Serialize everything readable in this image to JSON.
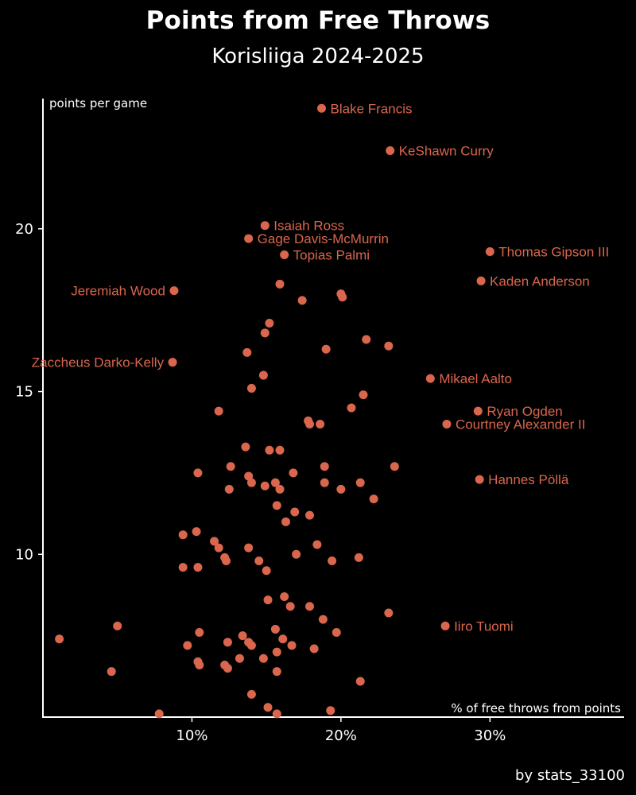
{
  "chart_data": {
    "type": "scatter",
    "title": "Points from Free Throws",
    "subtitle": "Korisliiga 2024-2025",
    "xlabel": "% of free throws from points",
    "ylabel": "points per game",
    "credit": "by stats_33100",
    "xlim": [
      0,
      39
    ],
    "ylim": [
      5,
      24
    ],
    "xticks": [
      {
        "value": 10,
        "label": "10%"
      },
      {
        "value": 20,
        "label": "20%"
      },
      {
        "value": 30,
        "label": "30%"
      }
    ],
    "yticks": [
      {
        "value": 10,
        "label": "10"
      },
      {
        "value": 15,
        "label": "15"
      },
      {
        "value": 20,
        "label": "20"
      }
    ],
    "grid": false,
    "labeled_points": [
      {
        "name": "Blake Francis",
        "x": 18.7,
        "y": 23.7,
        "side": "right"
      },
      {
        "name": "KeShawn Curry",
        "x": 23.3,
        "y": 22.4,
        "side": "right"
      },
      {
        "name": "Isaiah Ross",
        "x": 14.9,
        "y": 20.1,
        "side": "right"
      },
      {
        "name": "Gage Davis-McMurrin",
        "x": 13.8,
        "y": 19.7,
        "side": "right"
      },
      {
        "name": "Topias Palmi",
        "x": 16.2,
        "y": 19.2,
        "side": "right"
      },
      {
        "name": "Thomas Gipson III",
        "x": 30.0,
        "y": 19.3,
        "side": "right"
      },
      {
        "name": "Kaden Anderson",
        "x": 29.4,
        "y": 18.4,
        "side": "right"
      },
      {
        "name": "Jeremiah Wood",
        "x": 8.8,
        "y": 18.1,
        "side": "left"
      },
      {
        "name": "Zaccheus Darko-Kelly",
        "x": 8.7,
        "y": 15.9,
        "side": "left"
      },
      {
        "name": "Mikael Aalto",
        "x": 26.0,
        "y": 15.4,
        "side": "right"
      },
      {
        "name": "Ryan Ogden",
        "x": 29.2,
        "y": 14.4,
        "side": "right"
      },
      {
        "name": "Courtney Alexander II",
        "x": 27.1,
        "y": 14.0,
        "side": "right"
      },
      {
        "name": "Hannes Pöllä",
        "x": 29.3,
        "y": 12.3,
        "side": "right"
      },
      {
        "name": "Iiro Tuomi",
        "x": 27.0,
        "y": 7.8,
        "side": "right"
      }
    ],
    "points": [
      [
        15.9,
        18.3
      ],
      [
        20.0,
        18.0
      ],
      [
        20.1,
        17.9
      ],
      [
        17.4,
        17.8
      ],
      [
        15.2,
        17.1
      ],
      [
        14.9,
        16.8
      ],
      [
        21.7,
        16.6
      ],
      [
        23.2,
        16.4
      ],
      [
        19.0,
        16.3
      ],
      [
        13.7,
        16.2
      ],
      [
        14.8,
        15.5
      ],
      [
        14.0,
        15.1
      ],
      [
        21.5,
        14.9
      ],
      [
        20.7,
        14.5
      ],
      [
        11.8,
        14.4
      ],
      [
        17.8,
        14.1
      ],
      [
        17.9,
        14.0
      ],
      [
        18.6,
        14.0
      ],
      [
        13.6,
        13.3
      ],
      [
        15.2,
        13.2
      ],
      [
        15.9,
        13.2
      ],
      [
        12.6,
        12.7
      ],
      [
        18.9,
        12.7
      ],
      [
        23.6,
        12.7
      ],
      [
        10.4,
        12.5
      ],
      [
        13.8,
        12.4
      ],
      [
        16.8,
        12.5
      ],
      [
        14.0,
        12.2
      ],
      [
        15.6,
        12.2
      ],
      [
        18.9,
        12.2
      ],
      [
        21.3,
        12.2
      ],
      [
        12.5,
        12.0
      ],
      [
        14.9,
        12.1
      ],
      [
        15.9,
        12.0
      ],
      [
        20.0,
        12.0
      ],
      [
        22.2,
        11.7
      ],
      [
        15.7,
        11.5
      ],
      [
        16.9,
        11.3
      ],
      [
        17.9,
        11.2
      ],
      [
        16.3,
        11.0
      ],
      [
        9.4,
        10.6
      ],
      [
        10.3,
        10.7
      ],
      [
        11.5,
        10.4
      ],
      [
        11.8,
        10.2
      ],
      [
        13.8,
        10.2
      ],
      [
        18.4,
        10.3
      ],
      [
        12.2,
        9.9
      ],
      [
        12.3,
        9.8
      ],
      [
        14.5,
        9.8
      ],
      [
        17.0,
        10.0
      ],
      [
        19.4,
        9.8
      ],
      [
        21.2,
        9.9
      ],
      [
        9.4,
        9.6
      ],
      [
        10.4,
        9.6
      ],
      [
        15.0,
        9.5
      ],
      [
        16.2,
        8.7
      ],
      [
        15.1,
        8.6
      ],
      [
        16.6,
        8.4
      ],
      [
        17.9,
        8.4
      ],
      [
        23.2,
        8.2
      ],
      [
        5.0,
        7.8
      ],
      [
        18.8,
        8.0
      ],
      [
        15.6,
        7.7
      ],
      [
        19.7,
        7.6
      ],
      [
        10.5,
        7.6
      ],
      [
        1.1,
        7.4
      ],
      [
        13.4,
        7.5
      ],
      [
        13.8,
        7.3
      ],
      [
        14.0,
        7.2
      ],
      [
        16.1,
        7.4
      ],
      [
        16.7,
        7.2
      ],
      [
        9.7,
        7.2
      ],
      [
        12.4,
        7.3
      ],
      [
        18.2,
        7.1
      ],
      [
        15.7,
        7.0
      ],
      [
        13.2,
        6.8
      ],
      [
        14.8,
        6.8
      ],
      [
        10.4,
        6.7
      ],
      [
        10.5,
        6.6
      ],
      [
        12.2,
        6.6
      ],
      [
        12.4,
        6.5
      ],
      [
        4.6,
        6.4
      ],
      [
        15.7,
        6.4
      ],
      [
        21.3,
        6.1
      ],
      [
        14.0,
        5.7
      ],
      [
        15.1,
        5.3
      ],
      [
        15.7,
        5.1
      ],
      [
        19.3,
        5.2
      ],
      [
        7.8,
        5.1
      ]
    ]
  }
}
